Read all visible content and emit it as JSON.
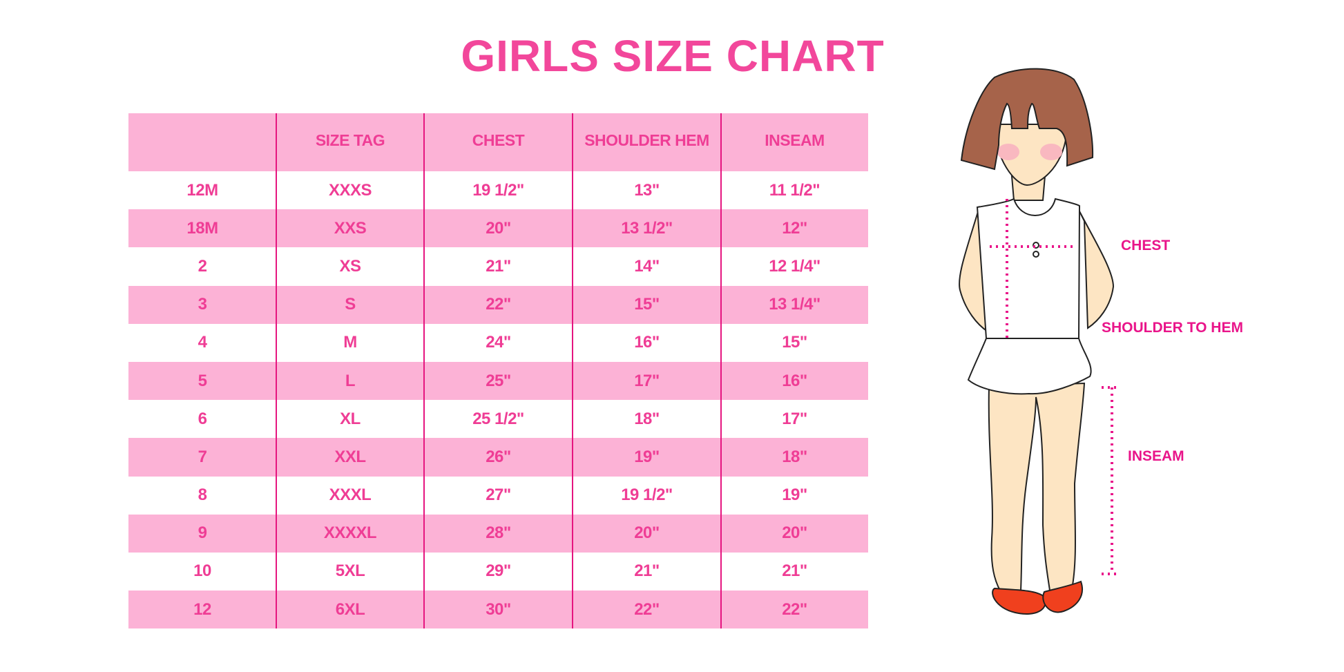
{
  "title": "GIRLS SIZE CHART",
  "table": {
    "headers": [
      "",
      "SIZE TAG",
      "CHEST",
      "SHOULDER HEM",
      "INSEAM"
    ],
    "rows": [
      [
        "12M",
        "XXXS",
        "19 1/2\"",
        "13\"",
        "11 1/2\""
      ],
      [
        "18M",
        "XXS",
        "20\"",
        "13 1/2\"",
        "12\""
      ],
      [
        "2",
        "XS",
        "21\"",
        "14\"",
        "12 1/4\""
      ],
      [
        "3",
        "S",
        "22\"",
        "15\"",
        "13 1/4\""
      ],
      [
        "4",
        "M",
        "24\"",
        "16\"",
        "15\""
      ],
      [
        "5",
        "L",
        "25\"",
        "17\"",
        "16\""
      ],
      [
        "6",
        "XL",
        "25 1/2\"",
        "18\"",
        "17\""
      ],
      [
        "7",
        "XXL",
        "26\"",
        "19\"",
        "18\""
      ],
      [
        "8",
        "XXXL",
        "27\"",
        "19 1/2\"",
        "19\""
      ],
      [
        "9",
        "XXXXL",
        "28\"",
        "20\"",
        "20\""
      ],
      [
        "10",
        "5XL",
        "29\"",
        "21\"",
        "21\""
      ],
      [
        "12",
        "6XL",
        "30\"",
        "22\"",
        "22\""
      ]
    ]
  },
  "figure": {
    "labels": {
      "chest": "CHEST",
      "shoulder_to_hem": "SHOULDER TO HEM",
      "inseam": "INSEAM"
    }
  },
  "colors": {
    "accent": "#f2479b",
    "row_pink": "#fcb2d6",
    "divider": "#e5157f"
  }
}
